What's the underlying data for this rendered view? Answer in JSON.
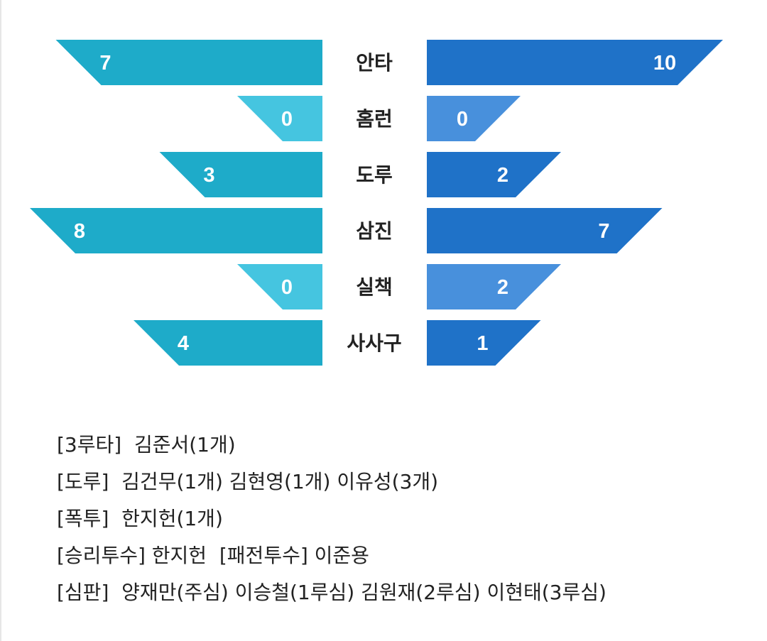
{
  "chart_data": {
    "type": "bar",
    "categories": [
      "안타",
      "홈런",
      "도루",
      "삼진",
      "실책",
      "사사구"
    ],
    "series": [
      {
        "values": [
          7,
          0,
          3,
          8,
          0,
          4
        ]
      },
      {
        "values": [
          10,
          0,
          2,
          7,
          2,
          1
        ]
      }
    ],
    "colors": {
      "left_dark": "#1eabc9",
      "left_light": "#45c5e0",
      "right_dark": "#1f72c8",
      "right_light": "#4890dc"
    }
  },
  "notes": [
    "[3루타]  김준서(1개)",
    "[도루]  김건무(1개) 김현영(1개) 이유성(3개)",
    "[폭투]  한지헌(1개)",
    "[승리투수] 한지헌  [패전투수] 이준용",
    "[심판]  양재만(주심) 이승철(1루심) 김원재(2루심) 이현태(3루심)"
  ]
}
